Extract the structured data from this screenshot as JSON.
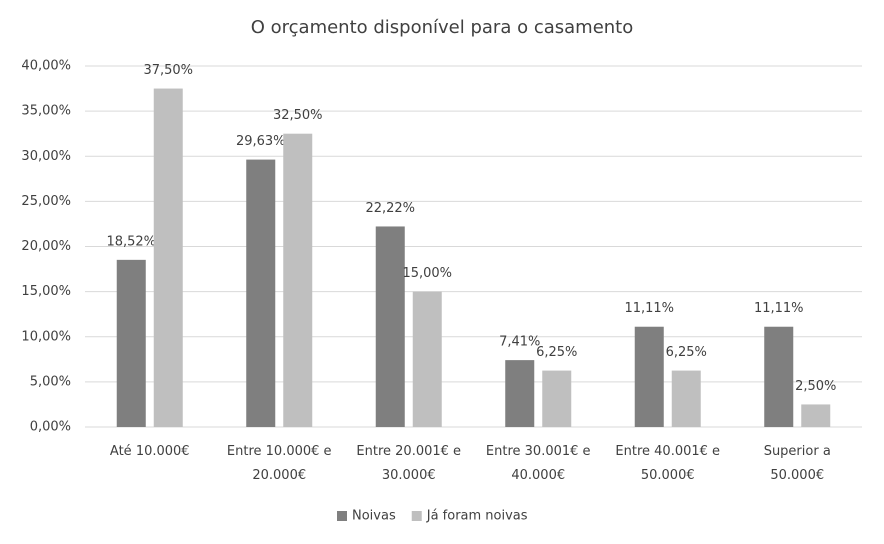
{
  "chart_data": {
    "type": "bar",
    "title": "O orçamento disponível para o casamento",
    "categories": [
      "Até 10.000€",
      "Entre 10.000€ e\n20.000€",
      "Entre 20.001€ e\n30.000€",
      "Entre 30.001€ e\n40.000€",
      "Entre 40.001€ e\n50.000€",
      "Superior a\n50.000€"
    ],
    "series": [
      {
        "name": "Noivas",
        "color": "#7f7f7f",
        "values": [
          18.52,
          29.63,
          22.22,
          7.41,
          11.11,
          11.11
        ],
        "value_labels": [
          "18,52%",
          "29,63%",
          "22,22%",
          "7,41%",
          "11,11%",
          "11,11%"
        ]
      },
      {
        "name": "Já foram noivas",
        "color": "#bfbfbf",
        "values": [
          37.5,
          32.5,
          15,
          6.25,
          6.25,
          2.5
        ],
        "value_labels": [
          "37,50%",
          "32,50%",
          "15,00%",
          "6,25%",
          "6,25%",
          "2,50%"
        ]
      }
    ],
    "ylim": [
      0,
      40
    ],
    "yticks": [
      {
        "value": 0,
        "label": "0,00%"
      },
      {
        "value": 5,
        "label": "5,00%"
      },
      {
        "value": 10,
        "label": "10,00%"
      },
      {
        "value": 15,
        "label": "15,00%"
      },
      {
        "value": 20,
        "label": "20,00%"
      },
      {
        "value": 25,
        "label": "25,00%"
      },
      {
        "value": 30,
        "label": "30,00%"
      },
      {
        "value": 35,
        "label": "35,00%"
      },
      {
        "value": 40,
        "label": "40,00%"
      }
    ],
    "grid": true,
    "legend": "bottom"
  }
}
